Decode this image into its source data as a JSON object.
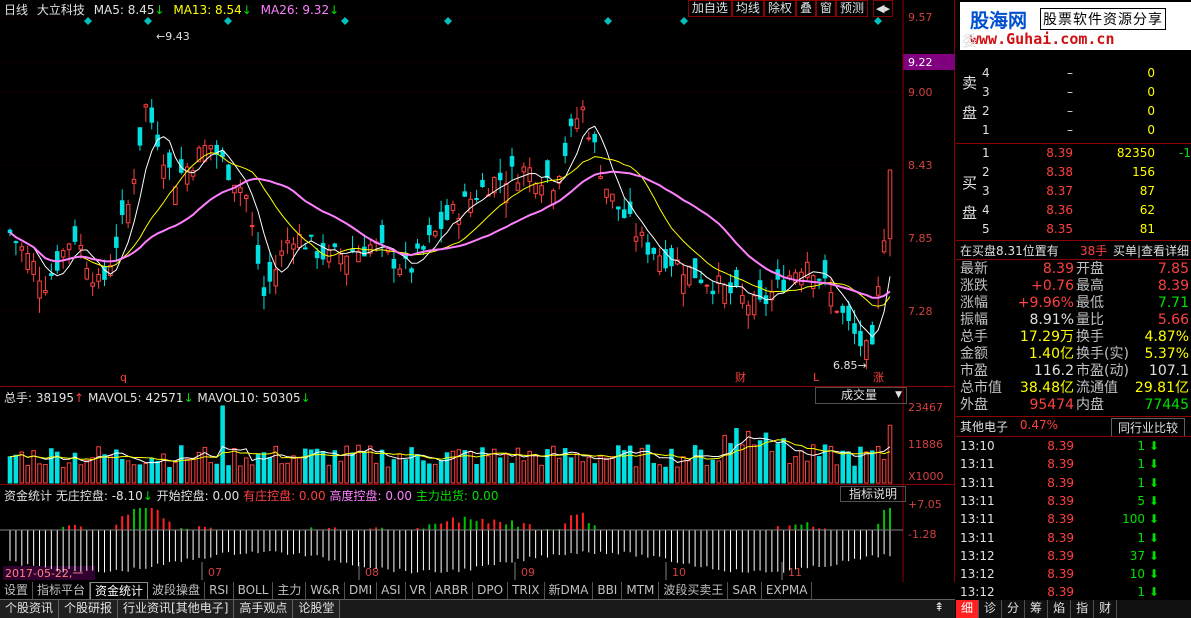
{
  "header": {
    "period": "日线",
    "stock": "大立科技",
    "ma5": "MA5: 8.45",
    "ma13": "MA13: 8.54",
    "ma26": "MA26: 9.32",
    "arrow": "↓"
  },
  "toolbar": [
    "加自选",
    "均线",
    "除权",
    "叠",
    "窗",
    "预测"
  ],
  "scroll_arrow": "◀▸",
  "price_axis": [
    "9.57",
    "9.22",
    "9.00",
    "8.43",
    "7.85",
    "7.28",
    "6.85"
  ],
  "price_axis_highlight": "9.22",
  "annotations": {
    "high": "9.43",
    "low": "6.85",
    "marker_q": "q",
    "marker_cai": "财",
    "marker_l": "L",
    "marker_zhang": "涨"
  },
  "volume_header": {
    "total": "总手: 38195",
    "up": "↑",
    "mavol5": "MAVOL5: 42571",
    "mavol10": "MAVOL10: 50305",
    "down": "↓"
  },
  "volume_dropdown": "成交量",
  "volume_axis": [
    "23467",
    "11886",
    "X1000"
  ],
  "fund_header": {
    "name": "资金统计",
    "wzkp": "无庄控盘: -8.10",
    "arrow": "↓",
    "kskp": "开始控盘: 0.00",
    "yzkp": "有庄控盘: 0.00",
    "gdkp": "高度控盘: 0.00",
    "zlch": "主力出货: 0.00"
  },
  "fund_button": "指标说明",
  "fund_axis": [
    "+7.05",
    "-1.28"
  ],
  "date_axis": [
    "07",
    "08",
    "09",
    "10",
    "11"
  ],
  "date_tag": "2017-05-22,一",
  "tabs": [
    "设置",
    "指标平台",
    "资金统计",
    "波段操盘",
    "RSI",
    "BOLL",
    "主力",
    "W&R",
    "DMI",
    "ASI",
    "VR",
    "ARBR",
    "DPO",
    "TRIX",
    "新DMA",
    "BBI",
    "MTM",
    "波段买卖王",
    "SAR",
    "EXPMA"
  ],
  "active_tab": "资金统计",
  "bottom_tabs": [
    "个股资讯",
    "个股研报",
    "行业资讯[其他电子]",
    "高手观点",
    "论股堂"
  ],
  "logo": {
    "main": "股海网",
    "sub": "股票软件资源分享",
    "url": "www.Guhai.com.cn"
  },
  "order_book": {
    "sell_label1": "卖",
    "sell_label2": "盘",
    "buy_label1": "买",
    "buy_label2": "盘",
    "side_top": "委",
    "sell": [
      {
        "lvl": "5",
        "price": "",
        "vol": ""
      },
      {
        "lvl": "4",
        "price": "–",
        "vol": "0"
      },
      {
        "lvl": "3",
        "price": "–",
        "vol": "0"
      },
      {
        "lvl": "2",
        "price": "–",
        "vol": "0"
      },
      {
        "lvl": "1",
        "price": "–",
        "vol": "0"
      }
    ],
    "buy": [
      {
        "lvl": "1",
        "price": "8.39",
        "vol": "82350",
        "chg": "-1"
      },
      {
        "lvl": "2",
        "price": "8.38",
        "vol": "156",
        "chg": ""
      },
      {
        "lvl": "3",
        "price": "8.37",
        "vol": "87",
        "chg": ""
      },
      {
        "lvl": "4",
        "price": "8.36",
        "vol": "62",
        "chg": ""
      },
      {
        "lvl": "5",
        "price": "8.35",
        "vol": "81",
        "chg": ""
      }
    ]
  },
  "position": {
    "left": "在买盘8.31位置有",
    "hands": "38手",
    "right": "买单|查看详细"
  },
  "quote": [
    {
      "l1": "最新",
      "v1": "8.39",
      "c1": "red",
      "l2": "开盘",
      "v2": "7.85",
      "c2": "red"
    },
    {
      "l1": "涨跌",
      "v1": "+0.76",
      "c1": "red",
      "l2": "最高",
      "v2": "8.39",
      "c2": "red"
    },
    {
      "l1": "涨幅",
      "v1": "+9.96%",
      "c1": "red",
      "l2": "最低",
      "v2": "7.71",
      "c2": "green"
    },
    {
      "l1": "振幅",
      "v1": "8.91%",
      "c1": "white",
      "l2": "量比",
      "v2": "5.66",
      "c2": "red"
    },
    {
      "l1": "总手",
      "v1": "17.29万",
      "c1": "yellow",
      "l2": "换手",
      "v2": "4.87%",
      "c2": "yellow"
    },
    {
      "l1": "金额",
      "v1": "1.40亿",
      "c1": "yellow",
      "l2": "换手(实)",
      "v2": "5.37%",
      "c2": "yellow"
    },
    {
      "l1": "市盈",
      "v1": "116.2",
      "c1": "white",
      "l2": "市盈(动)",
      "v2": "107.1",
      "c2": "white"
    },
    {
      "l1": "总市值",
      "v1": "38.48亿",
      "c1": "yellow",
      "l2": "流通值",
      "v2": "29.81亿",
      "c2": "yellow"
    },
    {
      "l1": "外盘",
      "v1": "95474",
      "c1": "red",
      "l2": "内盘",
      "v2": "77445",
      "c2": "green"
    }
  ],
  "sector": {
    "name": "其他电子",
    "pct": "0.47%",
    "compare": "同行业比较"
  },
  "ticks": [
    {
      "t": "13:10",
      "p": "8.39",
      "v": "1"
    },
    {
      "t": "13:11",
      "p": "8.39",
      "v": "1"
    },
    {
      "t": "13:11",
      "p": "8.39",
      "v": "1"
    },
    {
      "t": "13:11",
      "p": "8.39",
      "v": "5"
    },
    {
      "t": "13:11",
      "p": "8.39",
      "v": "100"
    },
    {
      "t": "13:11",
      "p": "8.39",
      "v": "1"
    },
    {
      "t": "13:12",
      "p": "8.39",
      "v": "37"
    },
    {
      "t": "13:12",
      "p": "8.39",
      "v": "10"
    },
    {
      "t": "13:12",
      "p": "8.39",
      "v": "1"
    }
  ],
  "right_tabs": [
    "细",
    "诊",
    "分",
    "筹",
    "焰",
    "指",
    "财"
  ],
  "colors": {
    "up": "#ff4040",
    "down": "#00e0e0",
    "ma5": "#ffffff",
    "ma13": "#ffff00",
    "ma26": "#ff80ff",
    "frame": "#8b0000"
  }
}
